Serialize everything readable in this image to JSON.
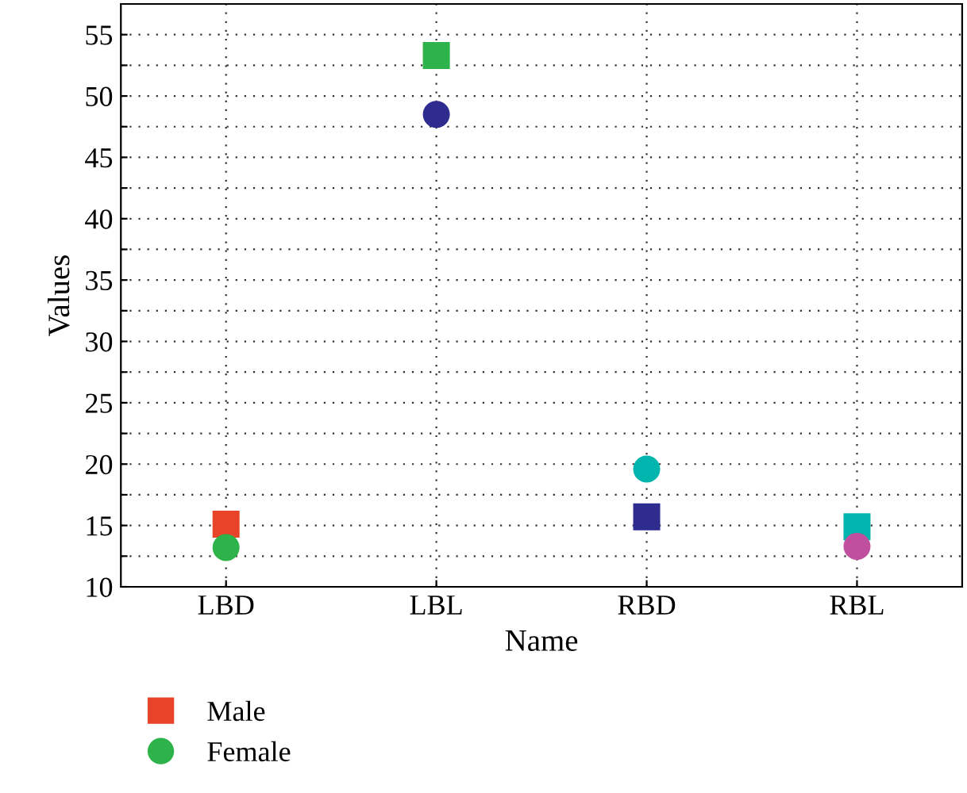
{
  "chart_data": {
    "type": "scatter",
    "xlabel": "Name",
    "ylabel": "Values",
    "categories": [
      "LBD",
      "LBL",
      "RBD",
      "RBL"
    ],
    "series": [
      {
        "name": "Male",
        "marker": "square",
        "colors": [
          "#e8442a",
          "#2db34a",
          "#2e2d8f",
          "#00b5ad"
        ],
        "values": [
          15.1,
          53.3,
          15.7,
          14.9
        ]
      },
      {
        "name": "Female",
        "marker": "circle",
        "colors": [
          "#2db34a",
          "#2e2d8f",
          "#00b5ad",
          "#c0509f"
        ],
        "values": [
          13.2,
          48.5,
          19.6,
          13.3
        ]
      }
    ],
    "ylim": [
      10,
      57.5
    ],
    "yticks": [
      10,
      {
        "value": 12.5,
        "label": null
      },
      15,
      {
        "value": 17.5,
        "label": null
      },
      20,
      {
        "value": 22.5,
        "label": null
      },
      25,
      {
        "value": 27.5,
        "label": null
      },
      30,
      {
        "value": 32.5,
        "label": null
      },
      35,
      {
        "value": 37.5,
        "label": null
      },
      40,
      {
        "value": 42.5,
        "label": null
      },
      45,
      {
        "value": 47.5,
        "label": null
      },
      50,
      {
        "value": 52.5,
        "label": null
      },
      55
    ],
    "grid": true,
    "legend": "bottom left"
  }
}
